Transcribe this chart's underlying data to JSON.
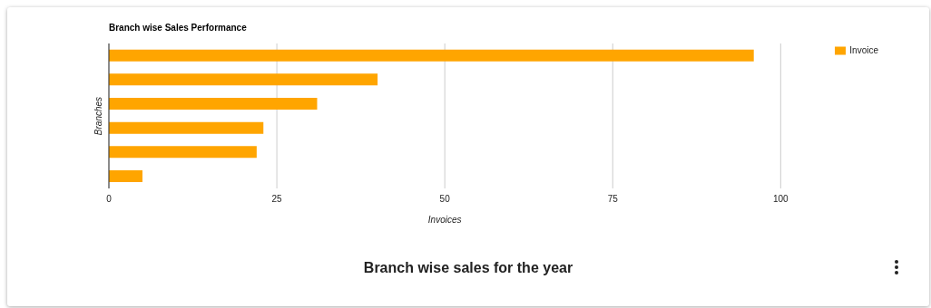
{
  "chart_data": {
    "type": "bar",
    "orientation": "horizontal",
    "title": "Branch wise Sales Performance",
    "xlabel": "Invoices",
    "ylabel": "Branches",
    "categories": [
      null,
      null,
      null,
      null,
      null,
      null
    ],
    "series": [
      {
        "name": "Invoice",
        "color": "#ffa500",
        "values": [
          96,
          40,
          31,
          23,
          22,
          5
        ]
      }
    ],
    "xlim": [
      0,
      100
    ],
    "xticks": [
      0,
      25,
      50,
      75,
      100
    ],
    "grid": "x",
    "legend": "top right",
    "annotations": [
      "Branch wise sales for the year"
    ]
  }
}
